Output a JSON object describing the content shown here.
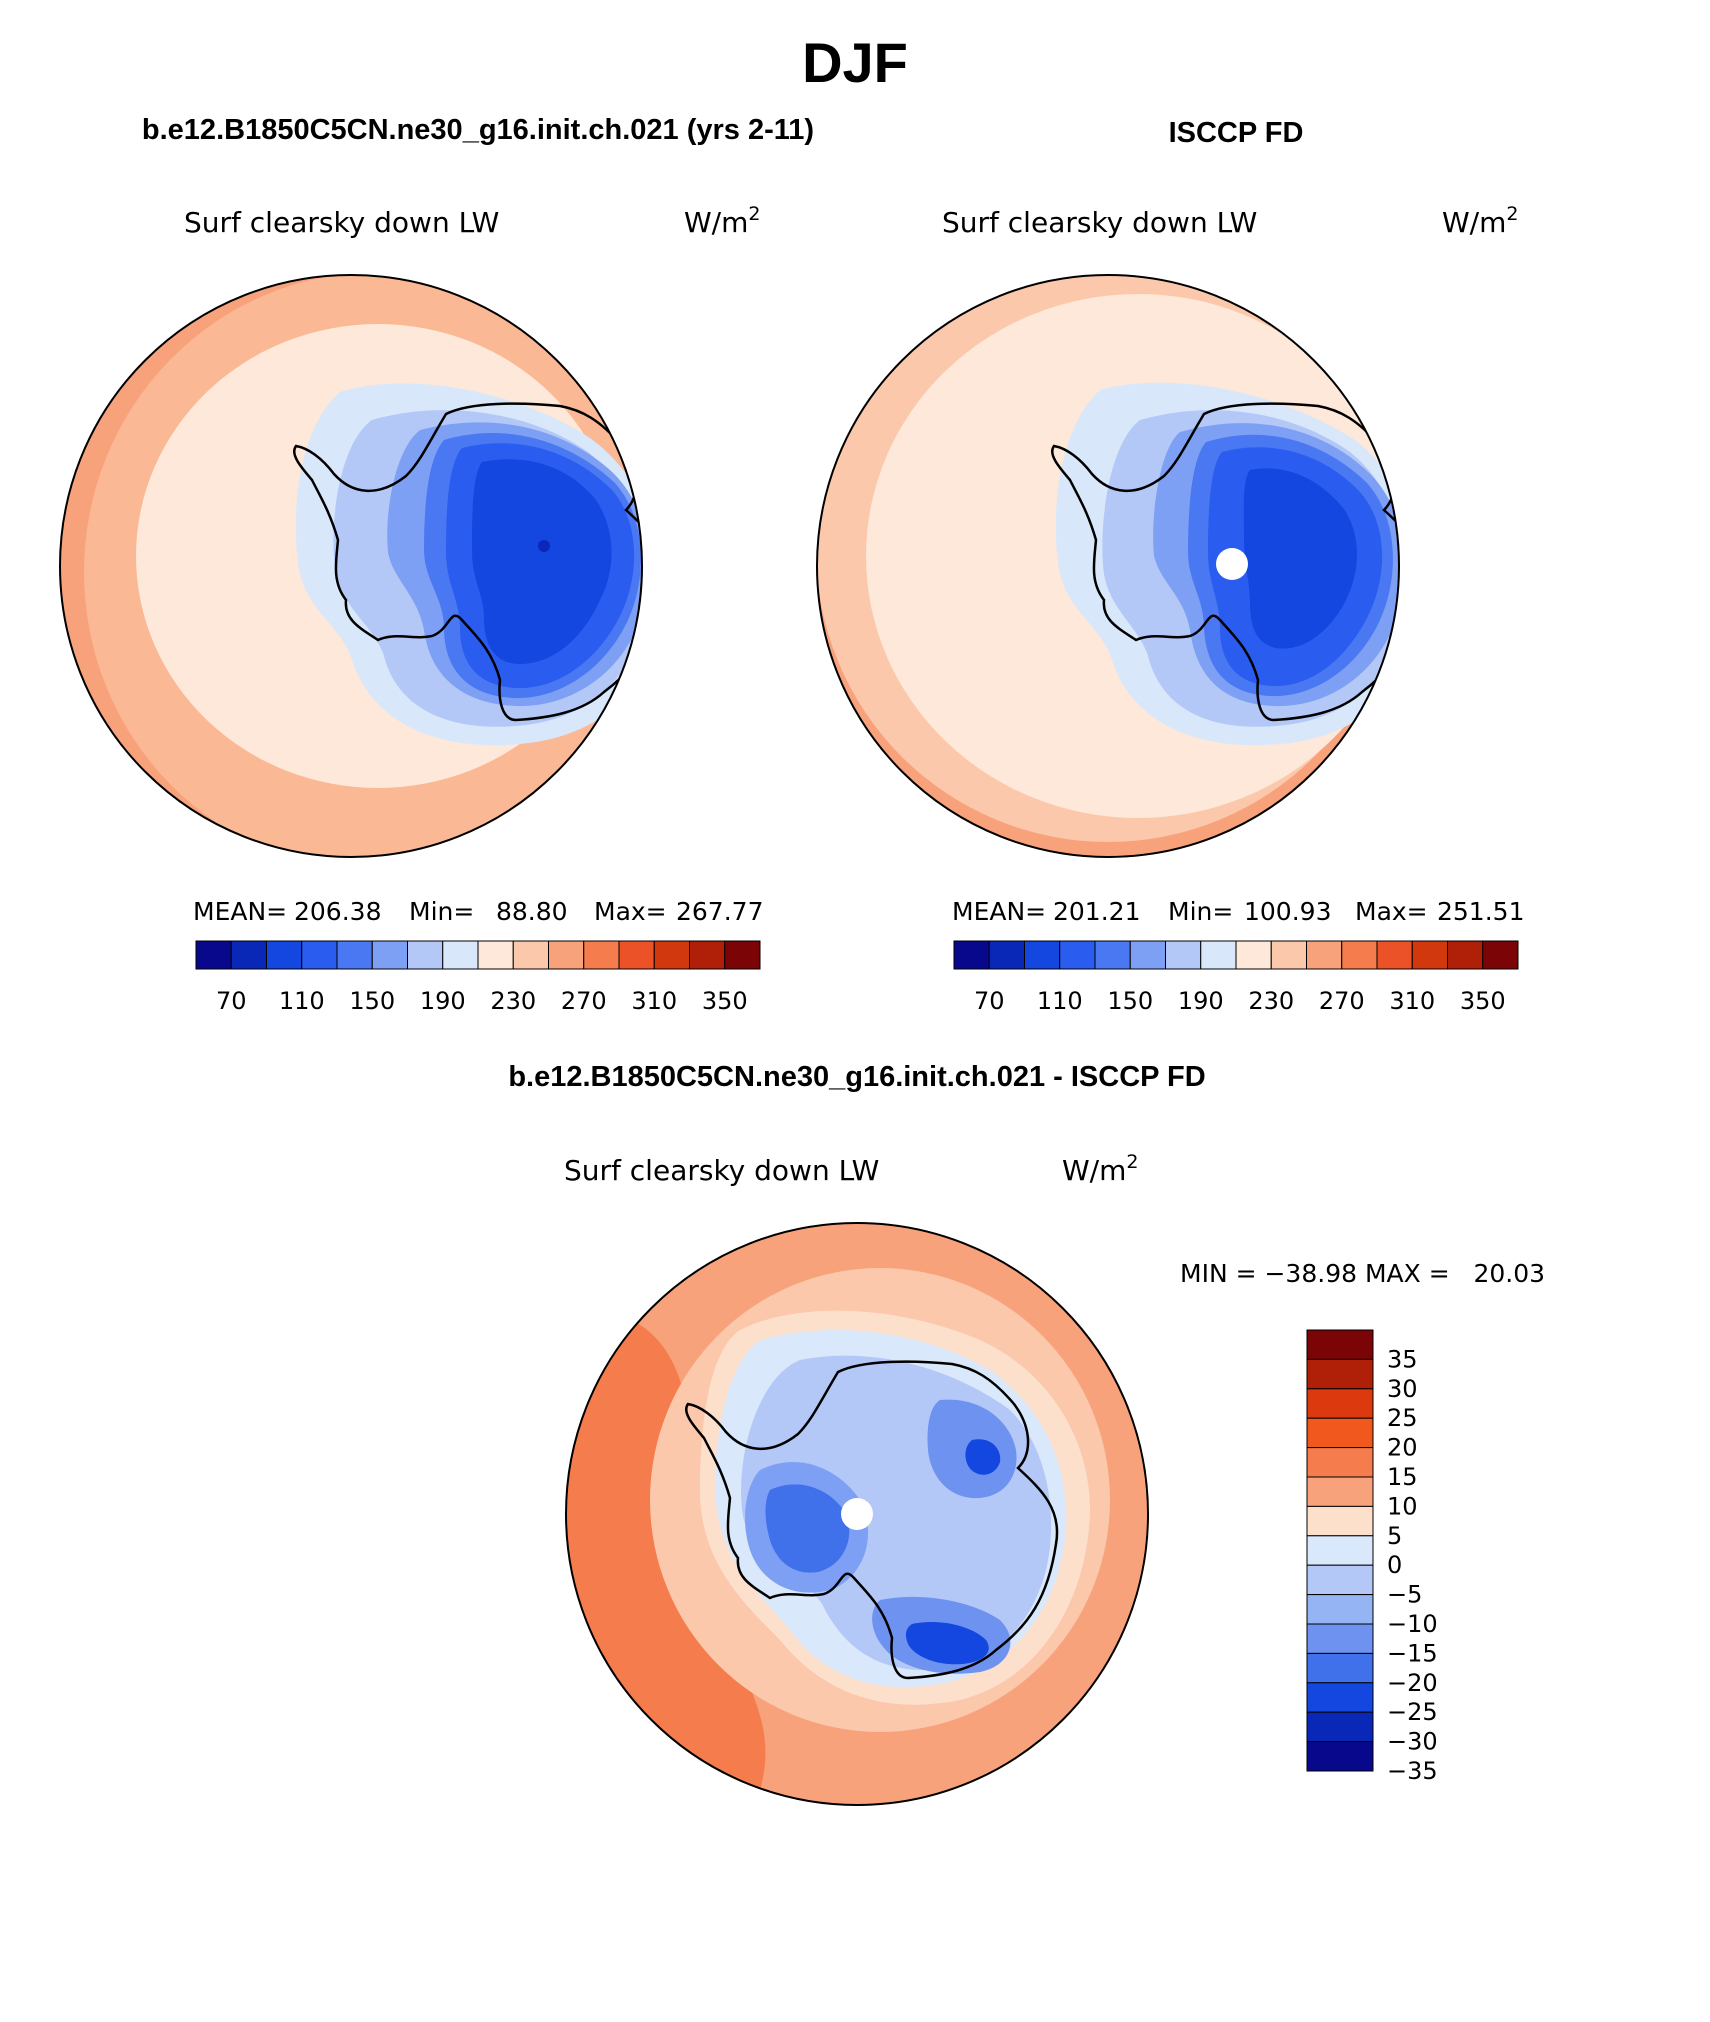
{
  "figure": {
    "season": "DJF",
    "unit": "W/m",
    "unit_exponent": "2",
    "variable": "Surf clearsky down LW"
  },
  "panels": [
    {
      "id": "model",
      "title": "b.e12.B1850C5CN.ne30_g16.init.ch.021 (yrs 2-11)",
      "variable": "Surf clearsky down LW",
      "stats": {
        "mean_label": "MEAN=",
        "mean": "206.38",
        "min_label": "Min=",
        "min": "88.80",
        "max_label": "Max=",
        "max": "267.77"
      },
      "colorbar_ticks": [
        "70",
        "110",
        "150",
        "190",
        "230",
        "270",
        "310",
        "350"
      ],
      "has_pole_hole": false
    },
    {
      "id": "obs",
      "title": "ISCCP FD",
      "variable": "Surf clearsky down LW",
      "stats": {
        "mean_label": "MEAN=",
        "mean": "201.21",
        "min_label": "Min=",
        "min": "100.93",
        "max_label": "Max=",
        "max": "251.51"
      },
      "colorbar_ticks": [
        "70",
        "110",
        "150",
        "190",
        "230",
        "270",
        "310",
        "350"
      ],
      "has_pole_hole": true
    }
  ],
  "difference": {
    "title": "b.e12.B1850C5CN.ne30_g16.init.ch.021 - ISCCP FD",
    "variable": "Surf clearsky down LW",
    "min_max_text": "MIN = −38.98 MAX =   20.03",
    "min": -38.98,
    "max": 20.03,
    "levels": [
      "35",
      "30",
      "25",
      "20",
      "15",
      "10",
      "5",
      "0",
      "−5",
      "−10",
      "−15",
      "−20",
      "−25",
      "−30",
      "−35"
    ]
  },
  "colors": {
    "abs_scale": [
      "#08088c",
      "#0a28b8",
      "#1446e0",
      "#2b5cf0",
      "#4a78f2",
      "#7ea0f4",
      "#b4c8f8",
      "#d8e8fa",
      "#fde8da",
      "#fbc8ac",
      "#f8a27c",
      "#f57c4c",
      "#ec5228",
      "#d2380e",
      "#b02008",
      "#7a0406"
    ],
    "diff_scale": [
      "#7a0406",
      "#b02008",
      "#dc3a0e",
      "#f0581e",
      "#f57c4c",
      "#f8a27c",
      "#fde0cc",
      "#dae8fb",
      "#b4c8f8",
      "#94b4f4",
      "#6e92f0",
      "#4070ea",
      "#1446e0",
      "#0a28b8",
      "#08088c"
    ],
    "outline": "#000000"
  }
}
